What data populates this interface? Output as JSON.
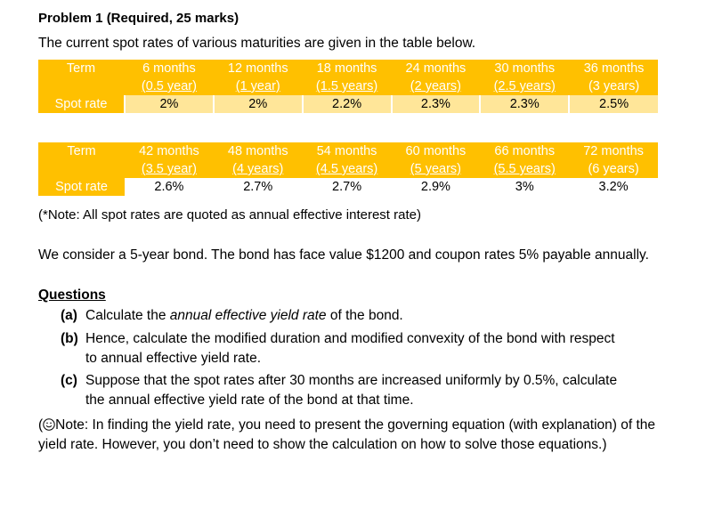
{
  "problem": {
    "title": "Problem 1 (Required, 25 marks)",
    "intro": "The current spot rates of various maturities are given in the table below."
  },
  "table1": {
    "term_label": "Term",
    "rate_label": "Spot rate",
    "terms": [
      "6 months",
      "12 months",
      "18 months",
      "24 months",
      "30 months",
      "36 months"
    ],
    "years": [
      "(0.5 year)",
      "(1 year)",
      "(1.5 years)",
      "(2 years)",
      "(2.5 years)",
      "(3 years)"
    ],
    "rates": [
      "2%",
      "2%",
      "2.2%",
      "2.3%",
      "2.3%",
      "2.5%"
    ]
  },
  "table2": {
    "term_label": "Term",
    "rate_label": "Spot rate",
    "terms": [
      "42 months",
      "48 months",
      "54 months",
      "60 months",
      "66 months",
      "72 months"
    ],
    "years": [
      "(3.5 year)",
      "(4 years)",
      "(4.5 years)",
      "(5 years)",
      "(5.5 years)",
      "(6 years)"
    ],
    "rates": [
      "2.6%",
      "2.7%",
      "2.7%",
      "2.9%",
      "3%",
      "3.2%"
    ]
  },
  "note": "(*Note: All spot rates are quoted as annual effective interest rate)",
  "bond": "We consider a 5-year bond. The bond has face value $1200 and coupon rates 5% payable annually.",
  "questions": {
    "heading": "Questions",
    "a_label": "(a)",
    "a_pre": "Calculate the ",
    "a_em": "annual effective yield rate",
    "a_post": " of the bond.",
    "b_label": "(b)",
    "b_line1": "Hence, calculate the modified duration and modified convexity of the bond with respect",
    "b_line2": "to annual effective yield rate.",
    "c_label": "(c)",
    "c_line1": "Suppose that the spot rates after 30 months are increased uniformly by 0.5%, calculate",
    "c_line2": "the annual effective yield rate of the bond at that time."
  },
  "final_note": {
    "open": "(",
    "icon": "smiley-icon",
    "text": "Note: In finding the yield rate, you need to present the governing equation (with explanation) of the yield rate. However, you don’t need to show the calculation on how to solve those equations.)"
  },
  "colors": {
    "header_fill": "#ffc000",
    "rate_fill": "#ffe699",
    "header_text": "#ffffff"
  }
}
